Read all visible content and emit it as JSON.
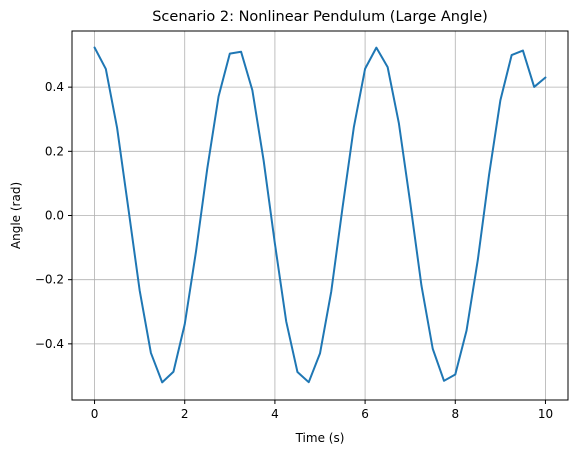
{
  "chart_data": {
    "type": "line",
    "title": "Scenario 2: Nonlinear Pendulum (Large Angle)",
    "xlabel": "Time (s)",
    "ylabel": "Angle (rad)",
    "xlim": [
      -0.5,
      10.5
    ],
    "ylim": [
      -0.575,
      0.575
    ],
    "x_ticks": [
      0,
      2,
      4,
      6,
      8,
      10
    ],
    "y_ticks": [
      -0.4,
      -0.2,
      0.0,
      0.2,
      0.4
    ],
    "x_tick_labels": [
      "0",
      "2",
      "4",
      "6",
      "8",
      "10"
    ],
    "y_tick_labels": [
      "−0.4",
      "−0.2",
      "0.0",
      "0.2",
      "0.4"
    ],
    "grid": true,
    "line_color": "#1f77b4",
    "grid_color": "#b0b0b0",
    "series": [
      {
        "x": [
          0,
          0.25,
          0.5,
          0.75,
          1.0,
          1.25,
          1.5,
          1.75,
          2.0,
          2.25,
          2.5,
          2.75,
          3.0,
          3.25,
          3.5,
          3.75,
          4.0,
          4.25,
          4.5,
          4.75,
          5.0,
          5.25,
          5.5,
          5.75,
          6.0,
          6.25,
          6.5,
          6.75,
          7.0,
          7.25,
          7.5,
          7.75,
          8.0,
          8.25,
          8.5,
          8.75,
          9.0,
          9.25,
          9.5,
          9.75,
          10.0
        ],
        "y": [
          0.5236,
          0.4568,
          0.2733,
          0.0218,
          -0.2331,
          -0.4283,
          -0.52,
          -0.487,
          -0.3389,
          -0.1122,
          0.1462,
          0.3709,
          0.5046,
          0.5102,
          0.3904,
          0.1712,
          -0.088,
          -0.3297,
          -0.4877,
          -0.5195,
          -0.4298,
          -0.2366,
          0.025,
          0.2747,
          0.4573,
          0.5231,
          0.4624,
          0.2868,
          0.0405,
          -0.2184,
          -0.4153,
          -0.5152,
          -0.4955,
          -0.3584,
          -0.1382,
          0.1272,
          0.3588,
          0.4999,
          0.5141,
          0.4007,
          0.43
        ]
      }
    ]
  }
}
